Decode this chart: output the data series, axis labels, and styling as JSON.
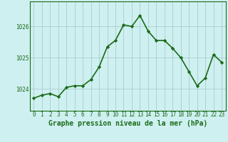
{
  "x": [
    0,
    1,
    2,
    3,
    4,
    5,
    6,
    7,
    8,
    9,
    10,
    11,
    12,
    13,
    14,
    15,
    16,
    17,
    18,
    19,
    20,
    21,
    22,
    23
  ],
  "y": [
    1023.7,
    1023.8,
    1023.85,
    1023.75,
    1024.05,
    1024.1,
    1024.1,
    1024.3,
    1024.7,
    1025.35,
    1025.55,
    1026.05,
    1026.0,
    1026.35,
    1025.85,
    1025.55,
    1025.55,
    1025.3,
    1025.0,
    1024.55,
    1024.1,
    1024.35,
    1025.1,
    1024.85
  ],
  "line_color": "#1a6b1a",
  "marker": "D",
  "marker_size": 2.2,
  "bg_color": "#cff0f0",
  "grid_color": "#aacccc",
  "xlabel": "Graphe pression niveau de la mer (hPa)",
  "xlabel_fontsize": 7,
  "ylabel_ticks": [
    1024,
    1025,
    1026
  ],
  "ylim": [
    1023.3,
    1026.8
  ],
  "xlim": [
    -0.5,
    23.5
  ],
  "line_width": 1.2,
  "tick_fontsize": 5.5
}
